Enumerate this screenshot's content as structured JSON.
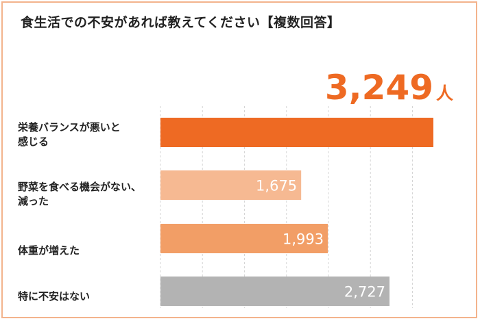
{
  "title": "食生活での不安があれば教えてください【複数回答】",
  "chart_data": {
    "type": "bar",
    "orientation": "horizontal",
    "title": "食生活での不安があれば教えてください【複数回答】",
    "unit": "人",
    "categories": [
      "栄養バランスが悪いと\n感じる",
      "野菜を食べる機会がない、\n減った",
      "体重が増えた",
      "特に不安はない"
    ],
    "values": [
      3249,
      1675,
      1993,
      2727
    ],
    "value_labels": [
      "3,249",
      "1,675",
      "1,993",
      "2,727"
    ],
    "colors": [
      "#ee6a23",
      "#f6b992",
      "#f29e66",
      "#b3b3b3"
    ],
    "xlim": [
      0,
      3400
    ],
    "grid": true
  }
}
